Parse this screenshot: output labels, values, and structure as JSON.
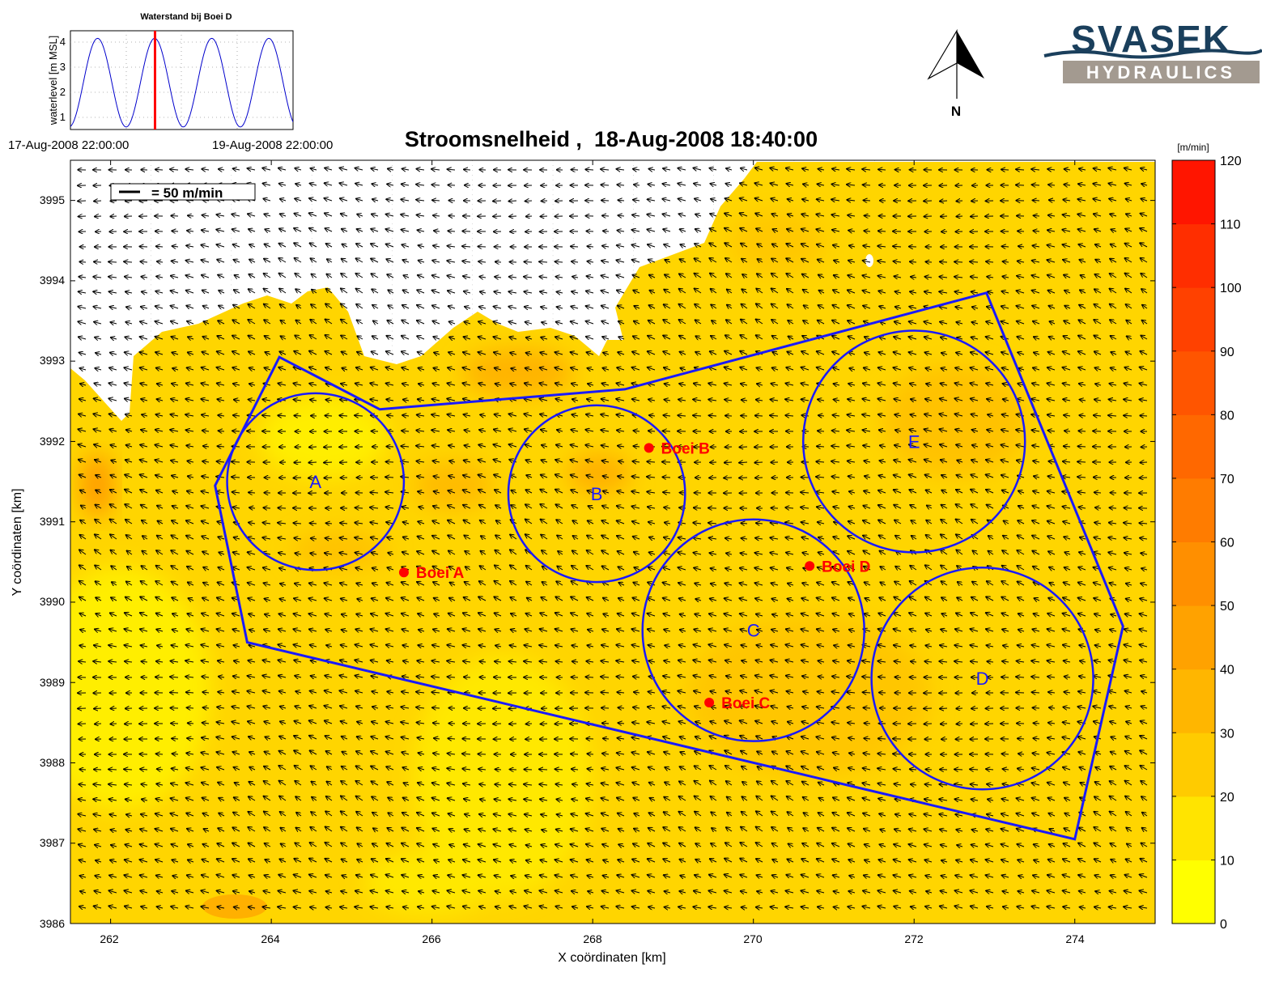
{
  "main_title": "Stroomsnelheid ,  18-Aug-2008 18:40:00",
  "inset": {
    "title": "Waterstand bij Boei D",
    "ylabel": "waterlevel [m MSL]",
    "yticks": [
      "1",
      "2",
      "3",
      "4"
    ],
    "xlabel_start": "17-Aug-2008 22:00:00",
    "xlabel_end": "19-Aug-2008 22:00:00",
    "current_time_marker_color": "#ff0000",
    "line_color": "#0000cc"
  },
  "scale_legend": {
    "label": "= 50 m/min"
  },
  "north_arrow": {
    "label": "N"
  },
  "logo": {
    "line1": "SVASEK",
    "line2": "HYDRAULICS",
    "color1": "#1a3f5c",
    "color2": "#a39a90"
  },
  "axes": {
    "xlabel": "X coördinaten [km]",
    "ylabel": "Y coördinaten [km]",
    "xticks": [
      "262",
      "264",
      "266",
      "268",
      "270",
      "272",
      "274"
    ],
    "yticks": [
      "3986",
      "3987",
      "3988",
      "3989",
      "3990",
      "3991",
      "3992",
      "3993",
      "3994",
      "3995"
    ]
  },
  "colorbar": {
    "unit": "[m/min]",
    "ticks": [
      "0",
      "10",
      "20",
      "30",
      "40",
      "50",
      "60",
      "70",
      "80",
      "90",
      "100",
      "110",
      "120"
    ],
    "colors": [
      "#ffff00",
      "#ffe400",
      "#ffcb00",
      "#ffb600",
      "#ffa200",
      "#ff8f00",
      "#ff7c00",
      "#ff6800",
      "#ff5500",
      "#ff4100",
      "#ff2e00",
      "#ff1500"
    ]
  },
  "chart_data": {
    "type": "map",
    "title": "Stroomsnelheid ,  18-Aug-2008 18:40:00",
    "xlabel": "X coördinaten [km]",
    "ylabel": "Y coördinaten [km]",
    "xlim": [
      261.5,
      275
    ],
    "ylim": [
      3986,
      3995.5
    ],
    "polygon_color": "#1a1aff",
    "polygon": [
      [
        264.1,
        3993.05
      ],
      [
        265.35,
        3992.4
      ],
      [
        268.4,
        3992.65
      ],
      [
        272.9,
        3993.85
      ],
      [
        274.6,
        3989.7
      ],
      [
        274.0,
        3987.05
      ],
      [
        263.7,
        3989.5
      ],
      [
        263.3,
        3991.45
      ]
    ],
    "circles": [
      {
        "label": "A",
        "x": 264.55,
        "y": 3991.5,
        "r": 1.1
      },
      {
        "label": "B",
        "x": 268.05,
        "y": 3991.35,
        "r": 1.1
      },
      {
        "label": "C",
        "x": 270.0,
        "y": 3989.65,
        "r": 1.38
      },
      {
        "label": "D",
        "x": 272.85,
        "y": 3989.05,
        "r": 1.38
      },
      {
        "label": "E",
        "x": 272.0,
        "y": 3992.0,
        "r": 1.38
      }
    ],
    "buoy_color": "#ff0000",
    "buoys": [
      {
        "label": "Boei A",
        "x": 265.65,
        "y": 3990.37
      },
      {
        "label": "Boei B",
        "x": 268.7,
        "y": 3991.92
      },
      {
        "label": "Boei C",
        "x": 269.45,
        "y": 3988.75
      },
      {
        "label": "Boei D",
        "x": 270.7,
        "y": 3990.45
      }
    ],
    "colorbar": {
      "unit": "[m/min]",
      "min": 0,
      "max": 120,
      "step": 10
    },
    "waterlevel_inset": {
      "title": "Waterstand bij Boei D",
      "ylim": [
        0.7,
        4.6
      ],
      "mean": 2.55,
      "amplitude": 1.75,
      "cycles": 3.9,
      "current_fraction": 0.38
    }
  }
}
